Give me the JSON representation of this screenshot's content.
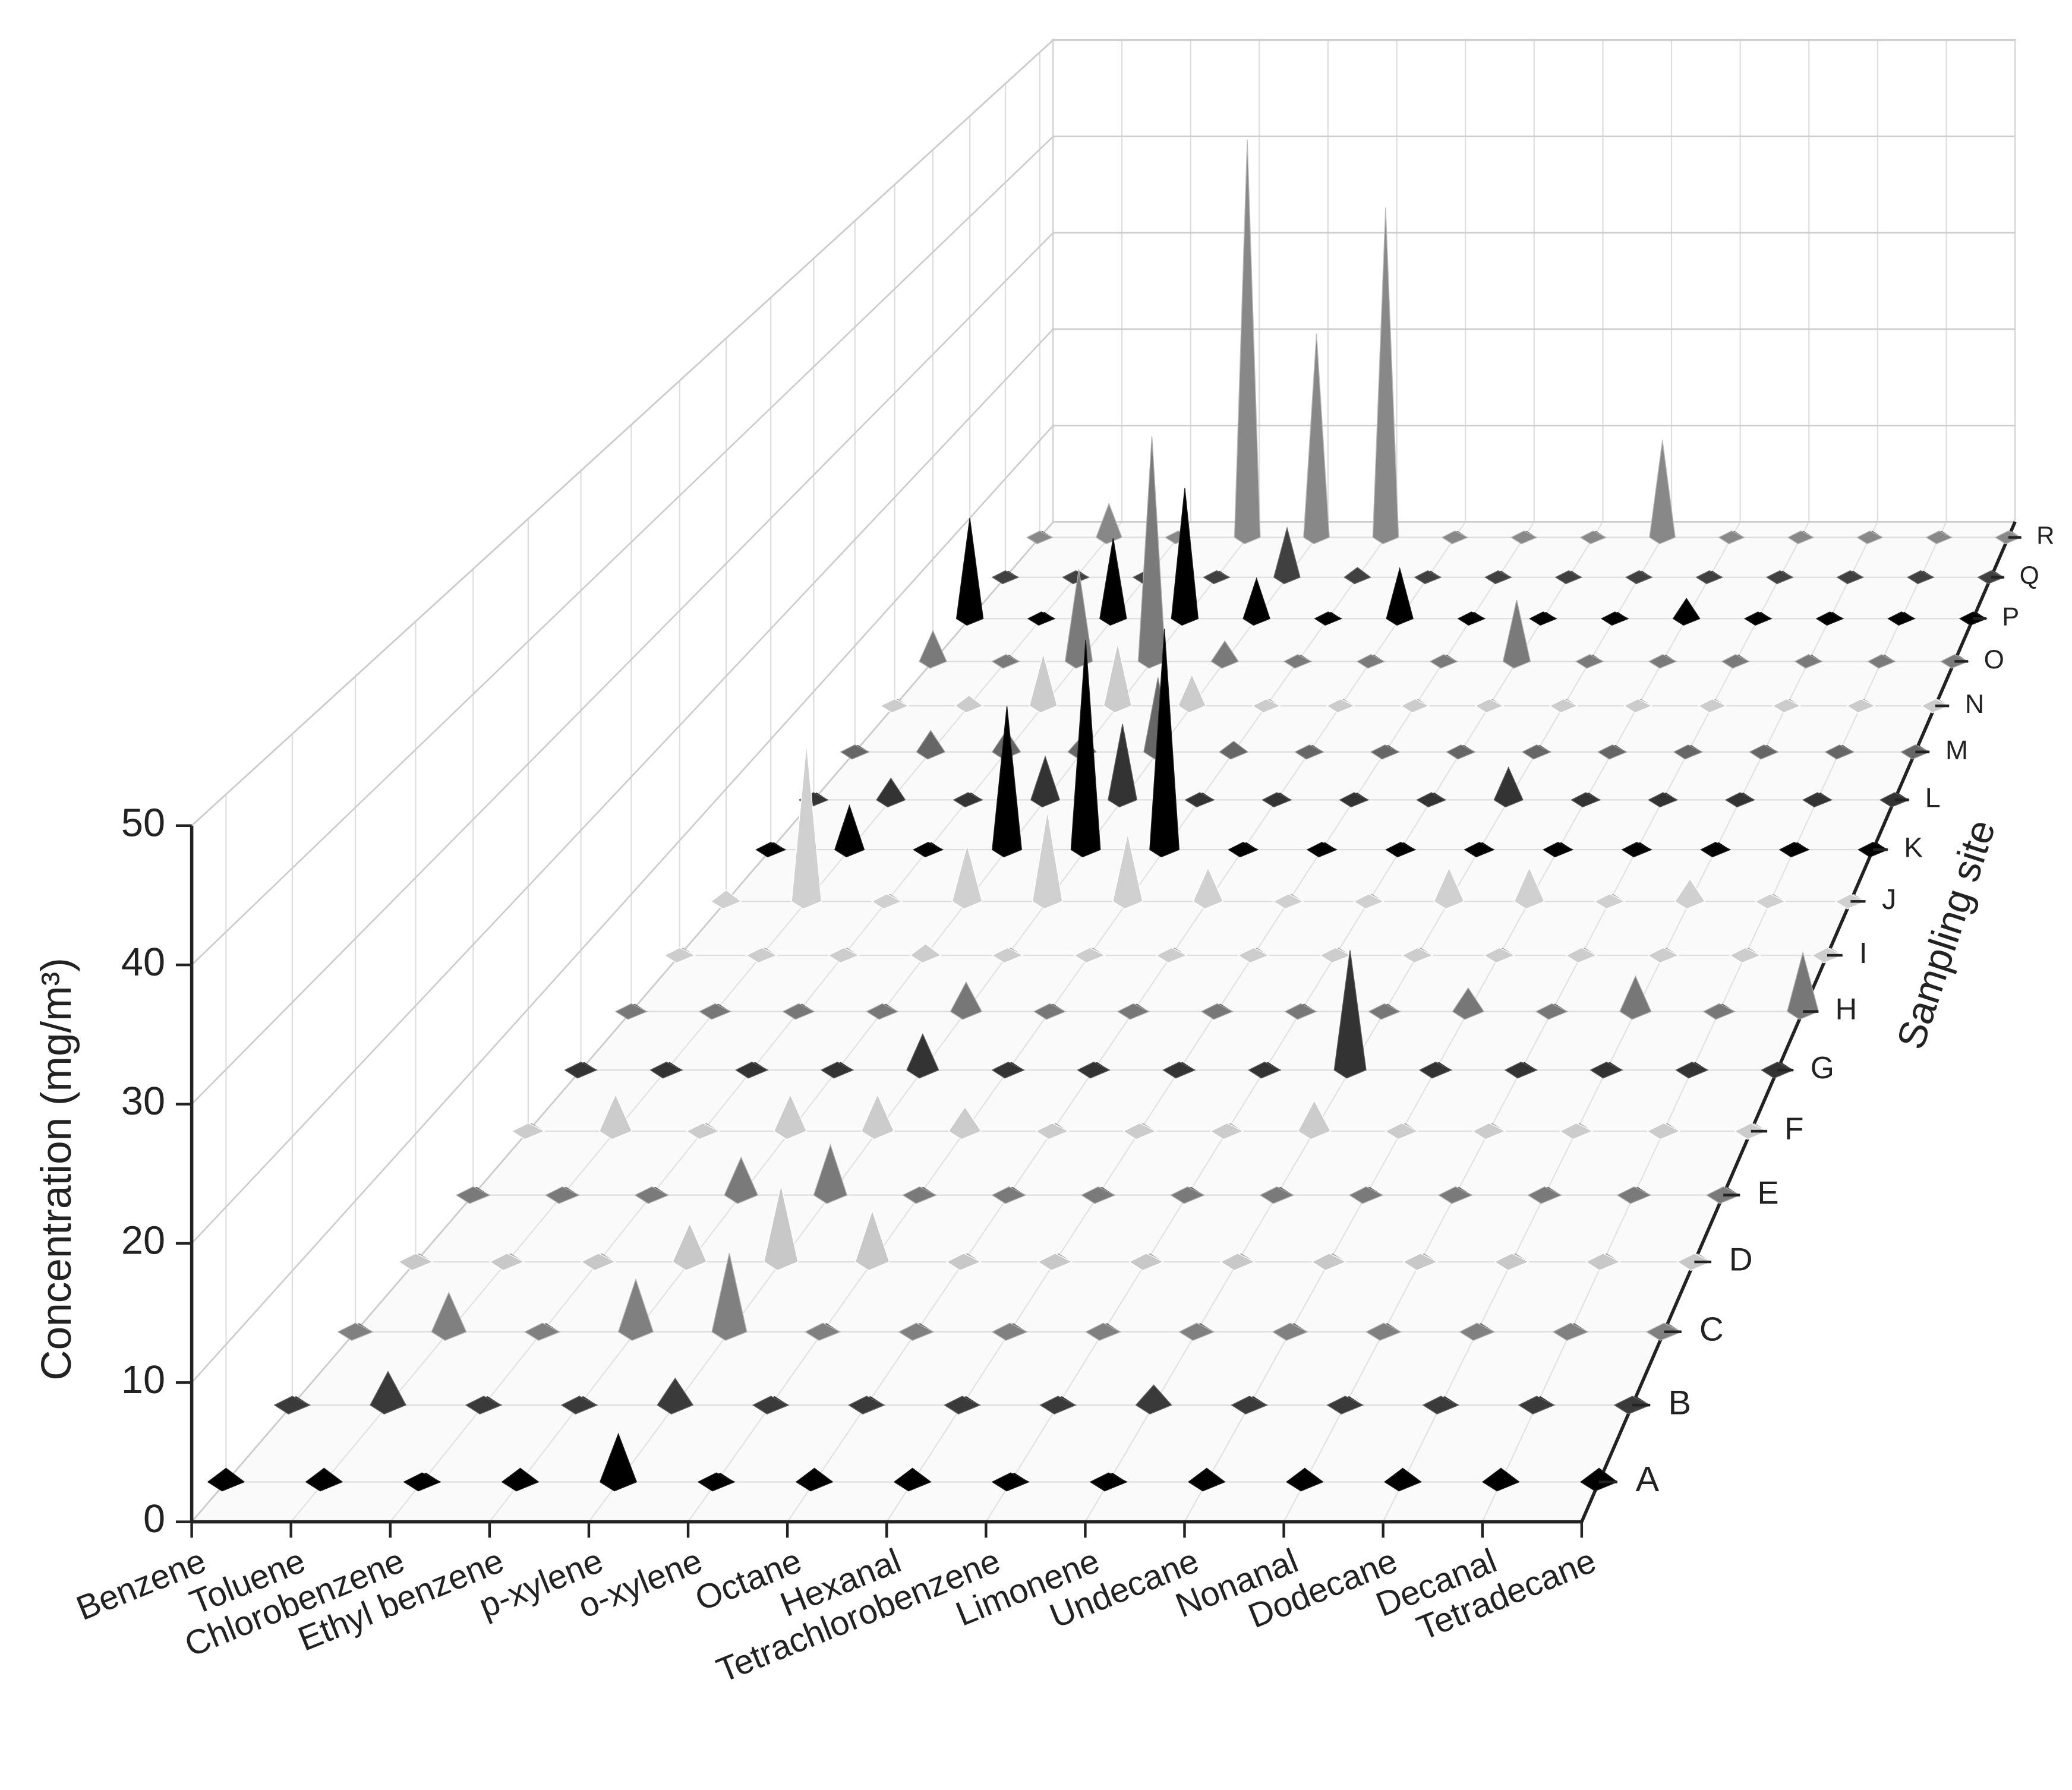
{
  "chart_data": {
    "type": "bar3d",
    "zlabel": "Concentration (mg/m³)",
    "ylabel": "Sampling site",
    "categories": [
      "Benzene",
      "Toluene",
      "Chlorobenzene",
      "Ethyl benzene",
      "p-xylene",
      "o-xylene",
      "Octane",
      "Hexanal",
      "Tetrachlorobenzene",
      "Limonene",
      "Undecane",
      "Nonanal",
      "Dodecane",
      "Decanal",
      "Tetradecane"
    ],
    "zlim": [
      0,
      50
    ],
    "zticks": [
      0,
      10,
      20,
      30,
      40,
      50
    ],
    "grid": true,
    "series": [
      {
        "name": "A",
        "color": "#000000",
        "values": [
          1,
          1,
          0.3,
          1,
          3.5,
          0.3,
          1,
          1,
          0.3,
          0.3,
          1,
          1,
          1,
          1,
          1
        ]
      },
      {
        "name": "B",
        "color": "#3a3a3a",
        "values": [
          0.5,
          2.5,
          0.5,
          0.5,
          2,
          0.5,
          0.5,
          0.5,
          0.5,
          1.5,
          0.5,
          0.5,
          0.5,
          0.5,
          0.5
        ]
      },
      {
        "name": "C",
        "color": "#808080",
        "values": [
          0.5,
          3,
          0.5,
          4,
          6,
          0.5,
          0.5,
          0.5,
          0.3,
          0.3,
          0.5,
          0.5,
          0.5,
          0.5,
          0.5
        ]
      },
      {
        "name": "D",
        "color": "#c8c8c8",
        "values": [
          0.3,
          0.5,
          0.5,
          3,
          6,
          4,
          0.5,
          0.5,
          0.5,
          0.5,
          0.5,
          0.5,
          0.5,
          0.5,
          0.5
        ]
      },
      {
        "name": "E",
        "color": "#7a7a7a",
        "values": [
          0.3,
          0.5,
          0.5,
          3,
          4,
          0.5,
          0.5,
          0.5,
          0.5,
          0.5,
          0.5,
          0.5,
          0.5,
          0.5,
          0.5
        ]
      },
      {
        "name": "F",
        "color": "#cccccc",
        "values": [
          0.5,
          3,
          0.3,
          3,
          3,
          2,
          0.5,
          0.5,
          0.5,
          2.5,
          0.5,
          0.5,
          0.5,
          0.5,
          0.5
        ]
      },
      {
        "name": "G",
        "color": "#333333",
        "values": [
          0.5,
          0.5,
          0.3,
          0.5,
          3,
          0.5,
          0.5,
          0.3,
          0.5,
          10,
          0.5,
          0.5,
          0.5,
          0.5,
          0.5
        ]
      },
      {
        "name": "H",
        "color": "#777777",
        "values": [
          0.5,
          0.5,
          0.3,
          0.5,
          2.5,
          0.3,
          0.5,
          0.5,
          0.3,
          0.3,
          2,
          0.3,
          3,
          0.5,
          5
        ]
      },
      {
        "name": "I",
        "color": "#cdcdcd",
        "values": [
          0.5,
          0.5,
          0.5,
          1,
          0.5,
          0.5,
          0.5,
          0.5,
          0.5,
          0.5,
          0.5,
          0.5,
          0.5,
          0.5,
          0.5
        ]
      },
      {
        "name": "J",
        "color": "#d0d0d0",
        "values": [
          1,
          14,
          0.5,
          5,
          8,
          6,
          3,
          0.5,
          0.5,
          3,
          3,
          0.5,
          2,
          0.5,
          0.5
        ]
      },
      {
        "name": "K",
        "color": "#000000",
        "values": [
          0.5,
          4,
          0.3,
          13,
          19,
          20,
          0.5,
          0.3,
          0.3,
          0.5,
          0.5,
          0.5,
          0.5,
          0.5,
          0.5
        ]
      },
      {
        "name": "L",
        "color": "#333333",
        "values": [
          0.5,
          2,
          0.5,
          4,
          7,
          0.5,
          0.5,
          0.5,
          0.5,
          3,
          0.5,
          0.5,
          0.5,
          0.5,
          0.5
        ]
      },
      {
        "name": "M",
        "color": "#666666",
        "values": [
          0.5,
          2,
          2,
          1.5,
          7,
          1,
          0.5,
          0.5,
          0.5,
          0.5,
          0.5,
          0.5,
          0.5,
          0.5,
          0.5
        ]
      },
      {
        "name": "N",
        "color": "#cccccc",
        "values": [
          0.5,
          1,
          5,
          6,
          3,
          0.5,
          0.5,
          0.5,
          0.5,
          0.5,
          0.5,
          0.5,
          0.5,
          0.5,
          0.5
        ]
      },
      {
        "name": "O",
        "color": "#7a7a7a",
        "values": [
          3,
          0.5,
          9,
          22,
          2,
          0.5,
          0.5,
          0.5,
          6,
          0.5,
          0.5,
          0.5,
          0.5,
          0.5,
          0.5
        ]
      },
      {
        "name": "P",
        "color": "#000000",
        "values": [
          10,
          0.5,
          8,
          13,
          4,
          0.3,
          5,
          0.3,
          0.3,
          0.5,
          2,
          0.3,
          0.5,
          0.3,
          0.5
        ]
      },
      {
        "name": "Q",
        "color": "#404040",
        "values": [
          0.5,
          0.5,
          0.5,
          0.5,
          5,
          1,
          0.5,
          0.5,
          0.3,
          0.5,
          0.5,
          0.5,
          0.5,
          0.5,
          0.5
        ]
      },
      {
        "name": "R",
        "color": "#888888",
        "values": [
          0.5,
          3.5,
          0.5,
          41,
          21,
          34,
          0.5,
          0.5,
          0.5,
          10,
          0.5,
          0.5,
          0.5,
          0.5,
          0.5
        ]
      }
    ]
  }
}
